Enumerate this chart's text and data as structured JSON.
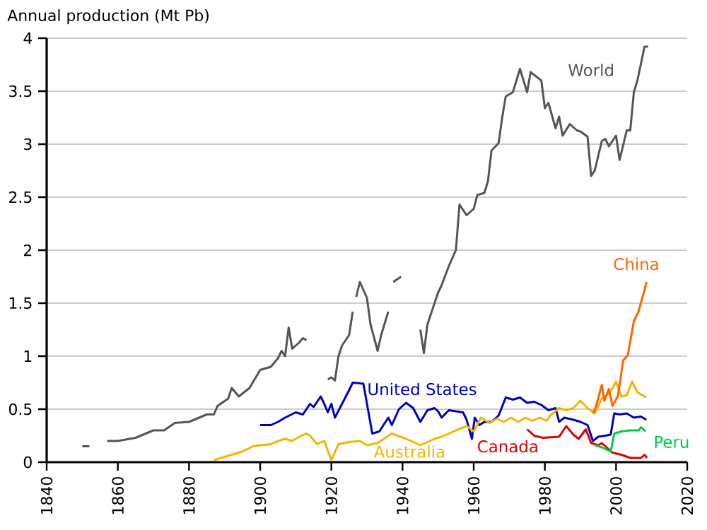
{
  "chart_data": {
    "type": "line",
    "ylabel": "Annual production (Mt Pb)",
    "xlim": [
      1840,
      2020
    ],
    "ylim": [
      0,
      4
    ],
    "xticks": [
      1840,
      1860,
      1880,
      1900,
      1920,
      1940,
      1960,
      1980,
      2000,
      2020
    ],
    "yticks": [
      0,
      0.5,
      1,
      1.5,
      2,
      2.5,
      3,
      3.5,
      4
    ],
    "grid": "y",
    "series": [
      {
        "name": "World",
        "color": "#555555",
        "x": [
          1850,
          1852,
          1853,
          1857,
          1860,
          1865,
          1870,
          1873,
          1876,
          1880,
          1885,
          1887,
          1888,
          1891,
          1892,
          1894,
          1897,
          1900,
          1903,
          1905,
          1906,
          1907,
          1908,
          1909,
          1911,
          1912,
          1913,
          1916,
          1919,
          1920,
          1921,
          1922,
          1923,
          1925,
          1926,
          1926.5,
          1927,
          1928,
          1930,
          1931,
          1933,
          1934,
          1936,
          1937,
          1937.4,
          1939.6,
          1942,
          1945,
          1946,
          1947,
          1949,
          1950,
          1951,
          1953,
          1955,
          1956,
          1958,
          1960,
          1961,
          1963,
          1964,
          1965,
          1967,
          1968,
          1969,
          1971,
          1973,
          1975,
          1976,
          1979,
          1980,
          1981,
          1983,
          1984,
          1985,
          1987,
          1989,
          1990,
          1992,
          1993,
          1994,
          1996,
          1997,
          1998,
          2000,
          2001,
          2003,
          2004,
          2005,
          2006,
          2008,
          2009
        ],
        "values": [
          0.15,
          0.15,
          null,
          0.2,
          0.2,
          0.23,
          0.3,
          0.3,
          0.37,
          0.38,
          0.45,
          0.45,
          0.53,
          0.6,
          0.7,
          0.62,
          0.7,
          0.87,
          0.9,
          0.98,
          1.05,
          1.0,
          1.27,
          1.07,
          1.13,
          1.17,
          1.15,
          null,
          0.78,
          0.8,
          0.77,
          1.0,
          1.1,
          1.2,
          1.42,
          null,
          1.56,
          1.7,
          1.55,
          1.3,
          1.05,
          1.2,
          1.42,
          null,
          1.7,
          1.75,
          null,
          1.25,
          1.03,
          1.3,
          1.5,
          1.6,
          1.67,
          1.85,
          2.0,
          2.43,
          2.33,
          2.39,
          2.52,
          2.54,
          2.65,
          2.94,
          3.01,
          3.25,
          3.45,
          3.49,
          3.71,
          3.49,
          3.68,
          3.6,
          3.34,
          3.39,
          3.15,
          3.26,
          3.08,
          3.19,
          3.13,
          3.12,
          3.07,
          2.7,
          2.75,
          3.03,
          3.05,
          2.98,
          3.08,
          2.85,
          3.13,
          3.13,
          3.49,
          3.6,
          3.92,
          3.92
        ]
      },
      {
        "name": "United States",
        "color": "#0000bb",
        "x": [
          1900,
          1903,
          1905,
          1907,
          1910,
          1912,
          1914,
          1915,
          1917,
          1918,
          1919,
          1920,
          1921,
          1923,
          1925,
          1926,
          1929,
          1931.5,
          1933.5,
          1936,
          1937,
          1939,
          1941,
          1943,
          1945,
          1947,
          1949,
          1950,
          1951,
          1953,
          1957,
          1958,
          1959.5,
          1960.3,
          1961.6,
          1963,
          1965,
          1967,
          1969,
          1971,
          1973,
          1975,
          1977,
          1979,
          1981,
          1983,
          1984,
          1985.5,
          1988,
          1990,
          1992,
          1993.5,
          1995,
          1997,
          1998.5,
          1999.5,
          2001,
          2003,
          2005,
          2007,
          2008.5
        ],
        "values": [
          0.35,
          0.35,
          0.38,
          0.42,
          0.47,
          0.45,
          0.55,
          0.52,
          0.62,
          0.55,
          0.47,
          0.55,
          0.42,
          0.55,
          0.68,
          0.75,
          0.74,
          0.27,
          0.29,
          0.42,
          0.35,
          0.5,
          0.56,
          0.51,
          0.38,
          0.49,
          0.51,
          0.48,
          0.42,
          0.49,
          0.47,
          0.4,
          0.22,
          0.42,
          0.35,
          0.38,
          0.38,
          0.44,
          0.61,
          0.59,
          0.61,
          0.56,
          0.57,
          0.54,
          0.49,
          0.51,
          0.38,
          0.42,
          0.4,
          0.38,
          0.35,
          0.2,
          0.24,
          0.25,
          0.26,
          0.46,
          0.45,
          0.46,
          0.42,
          0.43,
          0.4
        ]
      },
      {
        "name": "Australia",
        "color": "#f5b400",
        "x": [
          1887,
          1889,
          1892,
          1895,
          1898,
          1900,
          1903,
          1905,
          1907,
          1909,
          1911,
          1913,
          1914,
          1916,
          1918,
          1920,
          1922,
          1925,
          1928,
          1930,
          1933,
          1937,
          1941,
          1945,
          1949,
          1951,
          1955,
          1958,
          1960,
          1962,
          1964.5,
          1966.5,
          1968.5,
          1970.5,
          1972.5,
          1974.5,
          1976.5,
          1978.5,
          1980.5,
          1981.5,
          1984,
          1986,
          1988,
          1990,
          1992,
          1994,
          1996,
          1998,
          2000,
          2001.5,
          2003,
          2004.5,
          2006,
          2008.5
        ],
        "values": [
          0.02,
          0.04,
          0.07,
          0.1,
          0.15,
          0.16,
          0.17,
          0.2,
          0.22,
          0.2,
          0.24,
          0.27,
          0.25,
          0.17,
          0.2,
          0.02,
          0.17,
          0.19,
          0.2,
          0.16,
          0.18,
          0.27,
          0.22,
          0.16,
          0.22,
          0.24,
          0.3,
          0.34,
          0.29,
          0.42,
          0.37,
          0.41,
          0.38,
          0.42,
          0.38,
          0.42,
          0.39,
          0.42,
          0.39,
          0.44,
          0.51,
          0.49,
          0.51,
          0.58,
          0.51,
          0.46,
          0.6,
          0.64,
          0.76,
          0.62,
          0.63,
          0.76,
          0.66,
          0.61
        ]
      },
      {
        "name": "China",
        "color": "#ff6600",
        "x": [
          1993.5,
          1994.5,
          1996,
          1996.7,
          1998,
          1999,
          2000.5,
          2002,
          2003.3,
          2005,
          2006.3,
          2008.6
        ],
        "values": [
          0.46,
          0.54,
          0.73,
          0.58,
          0.69,
          0.53,
          0.62,
          0.96,
          1.01,
          1.33,
          1.42,
          1.7
        ]
      },
      {
        "name": "Canada",
        "color": "#dd0000",
        "x": [
          1975,
          1977,
          1979.5,
          1984,
          1986,
          1988,
          1989.5,
          1991.5,
          1993,
          1995,
          1996,
          1999,
          2001.5,
          2004,
          2007,
          2008,
          2008.7
        ],
        "values": [
          0.31,
          0.25,
          0.23,
          0.24,
          0.34,
          0.26,
          0.22,
          0.31,
          0.18,
          0.16,
          0.18,
          0.09,
          0.07,
          0.04,
          0.04,
          0.07,
          0.04
        ]
      },
      {
        "name": "Peru",
        "color": "#00cc44",
        "x": [
          1994,
          1996,
          1998.5,
          1999.5,
          2001.5,
          2004,
          2006.4,
          2007,
          2008.3
        ],
        "values": [
          0.16,
          0.14,
          0.1,
          0.27,
          0.29,
          0.3,
          0.3,
          0.33,
          0.29
        ]
      }
    ]
  }
}
